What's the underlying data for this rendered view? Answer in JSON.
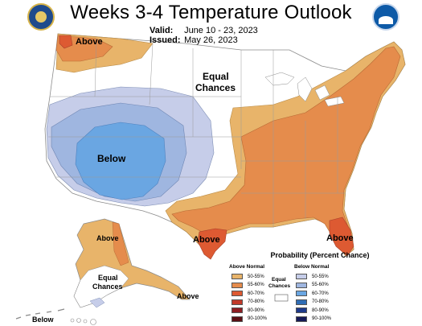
{
  "header": {
    "title": "Weeks 3-4 Temperature Outlook",
    "valid_label": "Valid:",
    "valid_value": "June 10 - 23, 2023",
    "issued_label": "Issued:",
    "issued_value": "May 26, 2023"
  },
  "map_labels": {
    "above_nw": "Above",
    "equal_central_1": "Equal",
    "equal_central_2": "Chances",
    "below_sw": "Below",
    "above_gulf": "Above",
    "above_fl": "Above",
    "ak_above": "Above",
    "ak_equal_1": "Equal",
    "ak_equal_2": "Chances",
    "ak_below": "Below",
    "se_ak_above": "Above",
    "ak_hawaii_below": "Below"
  },
  "legend": {
    "title": "Probability (Percent Chance)",
    "above_header": "Above Normal",
    "below_header": "Below Normal",
    "equal_label_1": "Equal",
    "equal_label_2": "Chances",
    "above": [
      {
        "label": "50-55%",
        "color": "#e8b46a"
      },
      {
        "label": "55-60%",
        "color": "#e58c4c"
      },
      {
        "label": "60-70%",
        "color": "#dd5a32"
      },
      {
        "label": "70-80%",
        "color": "#c23a2a"
      },
      {
        "label": "80-90%",
        "color": "#8e1e23"
      },
      {
        "label": "90-100%",
        "color": "#5a0f14"
      }
    ],
    "below": [
      {
        "label": "50-55%",
        "color": "#c6cde9"
      },
      {
        "label": "55-60%",
        "color": "#9fb6e0"
      },
      {
        "label": "60-70%",
        "color": "#6aa6e2"
      },
      {
        "label": "70-80%",
        "color": "#2f6db5"
      },
      {
        "label": "80-90%",
        "color": "#1e3a8a"
      },
      {
        "label": "90-100%",
        "color": "#151a56"
      }
    ]
  },
  "colors": {
    "land": "#ffffff",
    "borders": "#8a8a8a"
  },
  "logos": [
    "doc-seal-icon",
    "noaa-logo-icon"
  ]
}
